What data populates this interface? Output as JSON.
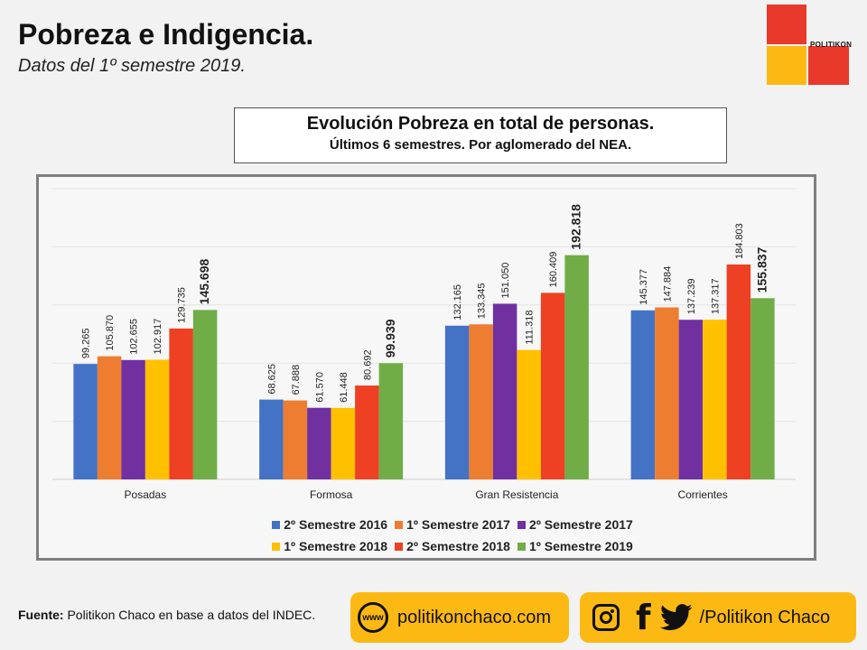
{
  "header": {
    "title": "Pobreza e Indigencia.",
    "subtitle": "Datos del 1º semestre 2019."
  },
  "logo": {
    "text": "POLITIKON",
    "colors": {
      "red": "#e8392b",
      "yellow": "#fdb913"
    }
  },
  "chart_box": {
    "title": "Evolución Pobreza en total de personas.",
    "subtitle": "Últimos 6 semestres. Por aglomerado del NEA."
  },
  "chart_data": {
    "type": "bar",
    "title": "Evolución Pobreza en total de personas.",
    "subtitle": "Últimos 6 semestres. Por aglomerado del NEA.",
    "categories": [
      "Posadas",
      "Formosa",
      "Gran Resistencia",
      "Corrientes"
    ],
    "series": [
      {
        "name": "2º Semestre 2016",
        "color": "#4472c4",
        "values": [
          99.265,
          68.625,
          132.165,
          145.377
        ],
        "labels": [
          "99.265",
          "68.625",
          "132.165",
          "145.377"
        ]
      },
      {
        "name": "1º Semestre 2017",
        "color": "#ed7d31",
        "values": [
          105.87,
          67.888,
          133.345,
          147.884
        ],
        "labels": [
          "105.870",
          "67.888",
          "133.345",
          "147.884"
        ]
      },
      {
        "name": "2º Semestre 2017",
        "color": "#7030a0",
        "values": [
          102.655,
          61.57,
          151.05,
          137.239
        ],
        "labels": [
          "102.655",
          "61.570",
          "151.050",
          "137.239"
        ]
      },
      {
        "name": "1º Semestre 2018",
        "color": "#ffc000",
        "values": [
          102.917,
          61.448,
          111.318,
          137.317
        ],
        "labels": [
          "102.917",
          "61.448",
          "111.318",
          "137.317"
        ]
      },
      {
        "name": "2º Semestre 2018",
        "color": "#ee4022",
        "values": [
          129.735,
          80.692,
          160.409,
          184.803
        ],
        "labels": [
          "129.735",
          "80.692",
          "160.409",
          "184.803"
        ]
      },
      {
        "name": "1º Semestre 2019",
        "color": "#70ad47",
        "values": [
          145.698,
          99.939,
          192.818,
          155.837
        ],
        "labels": [
          "145.698",
          "99.939",
          "192.818",
          "155.837"
        ],
        "bold_labels": true
      }
    ],
    "ylim": [
      0,
      250
    ],
    "grid": true,
    "legend": "bottom"
  },
  "legend": {
    "rows": [
      [
        {
          "name": "2º Semestre 2016",
          "color": "#4472c4"
        },
        {
          "name": "1º Semestre 2017",
          "color": "#ed7d31"
        },
        {
          "name": "2º Semestre 2017",
          "color": "#7030a0"
        }
      ],
      [
        {
          "name": "1º Semestre 2018",
          "color": "#ffc000"
        },
        {
          "name": "2º Semestre 2018",
          "color": "#ee4022"
        },
        {
          "name": "1º Semestre 2019",
          "color": "#70ad47"
        }
      ]
    ]
  },
  "footer": {
    "source_label": "Fuente:",
    "source_text": " Politikon Chaco en base a datos del INDEC.",
    "www_icon_label": "www",
    "website": "politikonchaco.com",
    "social_handle": "/Politikon Chaco",
    "icons": [
      "globe-www-icon",
      "instagram-icon",
      "facebook-icon",
      "twitter-icon"
    ],
    "pill_color": "#fdb913"
  }
}
